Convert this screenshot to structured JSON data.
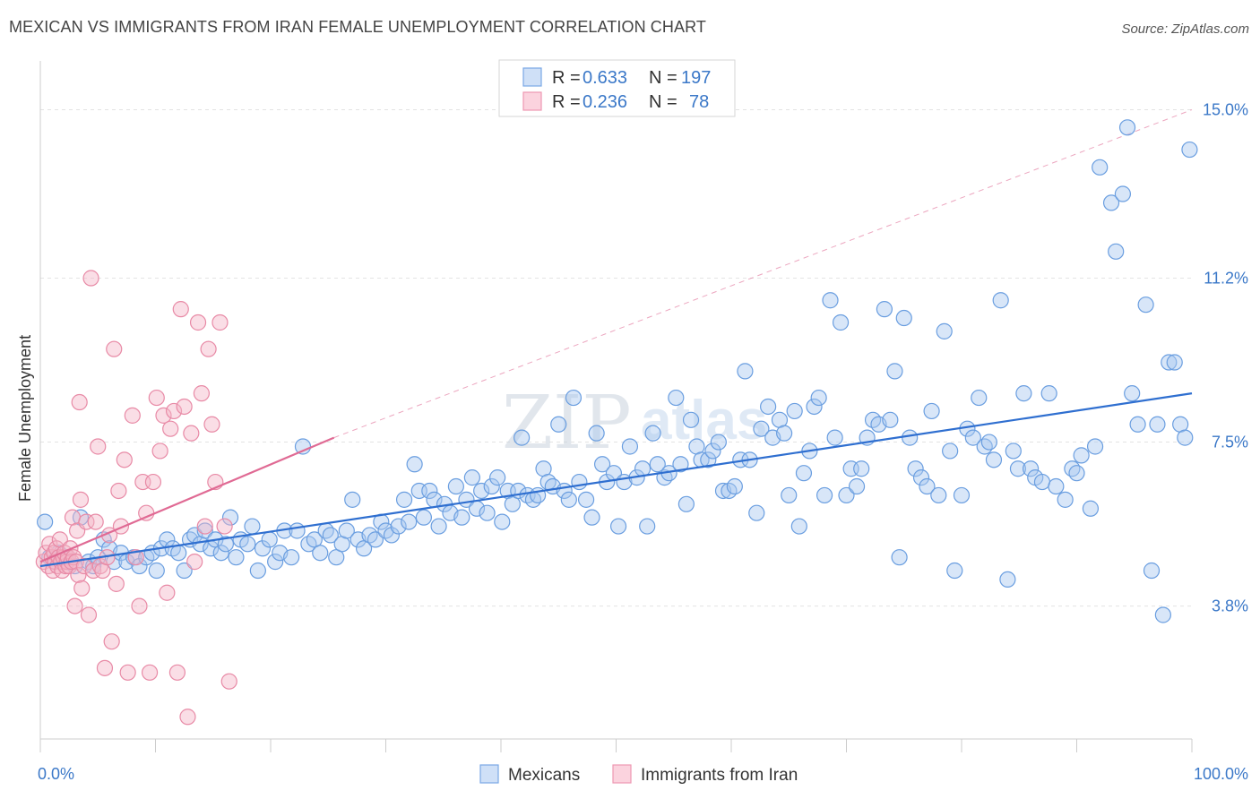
{
  "header": {
    "title": "MEXICAN VS IMMIGRANTS FROM IRAN FEMALE UNEMPLOYMENT CORRELATION CHART",
    "source": "Source: ZipAtlas.com"
  },
  "watermark": {
    "part1": "ZIP",
    "part2": "atlas"
  },
  "legend": {
    "rows": [
      {
        "r_label": "R = ",
        "r_value": "0.633",
        "n_label": "N = ",
        "n_value": "197",
        "color": "#a9c8f0"
      },
      {
        "r_label": "R = ",
        "r_value": "0.236",
        "n_label": "N = ",
        "n_value": "78",
        "color": "#f5b6c8"
      }
    ]
  },
  "bottom_legend": [
    "Mexicans",
    "Immigrants from Iran"
  ],
  "colors": {
    "blue_fill": "#a9c8f0",
    "blue_stroke": "#6a9ee0",
    "blue_line": "#2f6fd0",
    "pink_fill": "#f5b6c8",
    "pink_stroke": "#e88aa6",
    "pink_line": "#e06a94",
    "grid": "#e3e3e3",
    "tick_label": "#3b78c8"
  },
  "chart_data": {
    "type": "scatter",
    "title": "MEXICAN VS IMMIGRANTS FROM IRAN FEMALE UNEMPLOYMENT CORRELATION CHART",
    "xlabel": "",
    "ylabel": "Female Unemployment",
    "xlim": [
      0,
      100
    ],
    "ylim": [
      0.8,
      15.9
    ],
    "x_tick_labels": [
      "0.0%",
      "100.0%"
    ],
    "y_ticks": [
      3.8,
      7.5,
      11.2,
      15.0
    ],
    "y_tick_labels": [
      "3.8%",
      "7.5%",
      "11.2%",
      "15.0%"
    ],
    "grid": true,
    "series": [
      {
        "name": "Mexicans",
        "r": 0.633,
        "n": 197,
        "trend": {
          "x": [
            0,
            100
          ],
          "y": [
            4.7,
            8.6
          ]
        },
        "points": [
          [
            0.4,
            5.7
          ],
          [
            0.8,
            4.9
          ],
          [
            1.2,
            4.8
          ],
          [
            1.6,
            5.0
          ],
          [
            2.0,
            4.8
          ],
          [
            2.4,
            4.9
          ],
          [
            3.0,
            4.7
          ],
          [
            3.5,
            5.8
          ],
          [
            4.2,
            4.8
          ],
          [
            4.6,
            4.7
          ],
          [
            5.0,
            4.9
          ],
          [
            5.5,
            5.3
          ],
          [
            6.0,
            5.1
          ],
          [
            6.4,
            4.8
          ],
          [
            7.0,
            5.0
          ],
          [
            7.5,
            4.8
          ],
          [
            8.1,
            4.9
          ],
          [
            8.6,
            4.7
          ],
          [
            9.2,
            4.9
          ],
          [
            9.7,
            5.0
          ],
          [
            10.1,
            4.6
          ],
          [
            10.5,
            5.1
          ],
          [
            11.0,
            5.3
          ],
          [
            11.5,
            5.1
          ],
          [
            12.0,
            5.0
          ],
          [
            12.5,
            4.6
          ],
          [
            13.0,
            5.3
          ],
          [
            13.4,
            5.4
          ],
          [
            13.9,
            5.2
          ],
          [
            14.3,
            5.5
          ],
          [
            14.8,
            5.1
          ],
          [
            15.2,
            5.3
          ],
          [
            15.7,
            5.0
          ],
          [
            16.1,
            5.2
          ],
          [
            16.5,
            5.8
          ],
          [
            17.0,
            4.9
          ],
          [
            17.4,
            5.3
          ],
          [
            18.0,
            5.2
          ],
          [
            18.4,
            5.6
          ],
          [
            18.9,
            4.6
          ],
          [
            19.3,
            5.1
          ],
          [
            19.9,
            5.3
          ],
          [
            20.4,
            4.8
          ],
          [
            20.8,
            5.0
          ],
          [
            21.2,
            5.5
          ],
          [
            21.8,
            4.9
          ],
          [
            22.3,
            5.5
          ],
          [
            22.8,
            7.4
          ],
          [
            23.3,
            5.2
          ],
          [
            23.8,
            5.3
          ],
          [
            24.3,
            5.0
          ],
          [
            24.8,
            5.5
          ],
          [
            25.2,
            5.4
          ],
          [
            25.7,
            4.9
          ],
          [
            26.2,
            5.2
          ],
          [
            26.6,
            5.5
          ],
          [
            27.1,
            6.2
          ],
          [
            27.6,
            5.3
          ],
          [
            28.1,
            5.1
          ],
          [
            28.6,
            5.4
          ],
          [
            29.1,
            5.3
          ],
          [
            29.6,
            5.7
          ],
          [
            30.0,
            5.5
          ],
          [
            30.5,
            5.4
          ],
          [
            31.1,
            5.6
          ],
          [
            31.6,
            6.2
          ],
          [
            32.0,
            5.7
          ],
          [
            32.5,
            7.0
          ],
          [
            32.9,
            6.4
          ],
          [
            33.3,
            5.8
          ],
          [
            33.8,
            6.4
          ],
          [
            34.2,
            6.2
          ],
          [
            34.6,
            5.6
          ],
          [
            35.1,
            6.1
          ],
          [
            35.6,
            5.9
          ],
          [
            36.1,
            6.5
          ],
          [
            36.6,
            5.8
          ],
          [
            37.0,
            6.2
          ],
          [
            37.5,
            6.7
          ],
          [
            37.9,
            6.0
          ],
          [
            38.3,
            6.4
          ],
          [
            38.8,
            5.9
          ],
          [
            39.2,
            6.5
          ],
          [
            39.7,
            6.7
          ],
          [
            40.1,
            5.7
          ],
          [
            40.6,
            6.4
          ],
          [
            41.0,
            6.1
          ],
          [
            41.5,
            6.4
          ],
          [
            41.8,
            7.6
          ],
          [
            42.3,
            6.3
          ],
          [
            42.8,
            6.2
          ],
          [
            43.2,
            6.3
          ],
          [
            43.7,
            6.9
          ],
          [
            44.1,
            6.6
          ],
          [
            44.5,
            6.5
          ],
          [
            45.0,
            7.9
          ],
          [
            45.5,
            6.4
          ],
          [
            45.9,
            6.2
          ],
          [
            46.3,
            8.5
          ],
          [
            46.8,
            6.6
          ],
          [
            47.4,
            6.2
          ],
          [
            47.9,
            5.8
          ],
          [
            48.3,
            7.7
          ],
          [
            48.8,
            7.0
          ],
          [
            49.2,
            6.6
          ],
          [
            49.8,
            6.8
          ],
          [
            50.2,
            5.6
          ],
          [
            50.7,
            6.6
          ],
          [
            51.2,
            7.4
          ],
          [
            51.8,
            6.7
          ],
          [
            52.3,
            6.9
          ],
          [
            52.7,
            5.6
          ],
          [
            53.2,
            7.7
          ],
          [
            53.6,
            7.0
          ],
          [
            54.2,
            6.7
          ],
          [
            54.6,
            6.8
          ],
          [
            55.2,
            8.5
          ],
          [
            55.6,
            7.0
          ],
          [
            56.1,
            6.1
          ],
          [
            56.5,
            8.0
          ],
          [
            57.0,
            7.4
          ],
          [
            57.4,
            7.1
          ],
          [
            58.0,
            7.1
          ],
          [
            58.4,
            7.3
          ],
          [
            58.9,
            7.5
          ],
          [
            59.3,
            6.4
          ],
          [
            59.8,
            6.4
          ],
          [
            60.3,
            6.5
          ],
          [
            60.8,
            7.1
          ],
          [
            61.2,
            9.1
          ],
          [
            61.6,
            7.1
          ],
          [
            62.2,
            5.9
          ],
          [
            62.6,
            7.8
          ],
          [
            63.2,
            8.3
          ],
          [
            63.6,
            7.6
          ],
          [
            64.2,
            8.0
          ],
          [
            64.6,
            7.7
          ],
          [
            65.0,
            6.3
          ],
          [
            65.5,
            8.2
          ],
          [
            65.9,
            5.6
          ],
          [
            66.3,
            6.8
          ],
          [
            66.8,
            7.3
          ],
          [
            67.2,
            8.3
          ],
          [
            67.6,
            8.5
          ],
          [
            68.1,
            6.3
          ],
          [
            68.6,
            10.7
          ],
          [
            69.0,
            7.6
          ],
          [
            69.5,
            10.2
          ],
          [
            70.0,
            6.3
          ],
          [
            70.4,
            6.9
          ],
          [
            70.9,
            6.5
          ],
          [
            71.3,
            6.9
          ],
          [
            71.8,
            7.6
          ],
          [
            72.3,
            8.0
          ],
          [
            72.8,
            7.9
          ],
          [
            73.3,
            10.5
          ],
          [
            73.8,
            8.0
          ],
          [
            74.2,
            9.1
          ],
          [
            74.6,
            4.9
          ],
          [
            75.0,
            10.3
          ],
          [
            75.5,
            7.6
          ],
          [
            76.0,
            6.9
          ],
          [
            76.5,
            6.7
          ],
          [
            77.0,
            6.5
          ],
          [
            77.4,
            8.2
          ],
          [
            78.0,
            6.3
          ],
          [
            78.5,
            10.0
          ],
          [
            79.0,
            7.3
          ],
          [
            79.4,
            4.6
          ],
          [
            80.0,
            6.3
          ],
          [
            80.5,
            7.8
          ],
          [
            81.0,
            7.6
          ],
          [
            81.5,
            8.5
          ],
          [
            82.0,
            7.4
          ],
          [
            82.4,
            7.5
          ],
          [
            82.8,
            7.1
          ],
          [
            83.4,
            10.7
          ],
          [
            84.0,
            4.4
          ],
          [
            84.5,
            7.3
          ],
          [
            84.9,
            6.9
          ],
          [
            85.4,
            8.6
          ],
          [
            86.0,
            6.9
          ],
          [
            86.4,
            6.7
          ],
          [
            87.0,
            6.6
          ],
          [
            87.6,
            8.6
          ],
          [
            88.2,
            6.5
          ],
          [
            89.0,
            6.2
          ],
          [
            89.6,
            6.9
          ],
          [
            90.0,
            6.8
          ],
          [
            90.4,
            7.2
          ],
          [
            91.2,
            6.0
          ],
          [
            91.6,
            7.4
          ],
          [
            92.0,
            13.7
          ],
          [
            93.0,
            12.9
          ],
          [
            93.4,
            11.8
          ],
          [
            94.0,
            13.1
          ],
          [
            94.4,
            14.6
          ],
          [
            94.8,
            8.6
          ],
          [
            95.3,
            7.9
          ],
          [
            96.0,
            10.6
          ],
          [
            96.5,
            4.6
          ],
          [
            97.0,
            7.9
          ],
          [
            97.5,
            3.6
          ],
          [
            98.0,
            9.3
          ],
          [
            98.5,
            9.3
          ],
          [
            99.0,
            7.9
          ],
          [
            99.4,
            7.6
          ],
          [
            99.8,
            14.1
          ]
        ]
      },
      {
        "name": "Immigrants from Iran",
        "r": 0.236,
        "n": 78,
        "trend": {
          "x": [
            0,
            25.5
          ],
          "y": [
            4.8,
            7.6
          ]
        },
        "trend_extension": {
          "x": [
            25.5,
            100
          ],
          "y": [
            7.6,
            15.0
          ]
        },
        "points": [
          [
            0.3,
            4.8
          ],
          [
            0.5,
            5.0
          ],
          [
            0.7,
            4.7
          ],
          [
            0.8,
            5.2
          ],
          [
            1.0,
            4.9
          ],
          [
            1.1,
            4.6
          ],
          [
            1.2,
            5.0
          ],
          [
            1.3,
            4.8
          ],
          [
            1.4,
            5.1
          ],
          [
            1.5,
            4.7
          ],
          [
            1.6,
            4.9
          ],
          [
            1.7,
            5.3
          ],
          [
            1.8,
            4.8
          ],
          [
            1.9,
            4.6
          ],
          [
            2.0,
            4.9
          ],
          [
            2.1,
            5.0
          ],
          [
            2.2,
            4.7
          ],
          [
            2.3,
            4.8
          ],
          [
            2.4,
            4.9
          ],
          [
            2.5,
            4.7
          ],
          [
            2.6,
            5.1
          ],
          [
            2.7,
            4.8
          ],
          [
            2.8,
            5.8
          ],
          [
            2.9,
            4.9
          ],
          [
            3.0,
            3.8
          ],
          [
            3.1,
            4.8
          ],
          [
            3.2,
            5.5
          ],
          [
            3.3,
            4.5
          ],
          [
            3.4,
            8.4
          ],
          [
            3.5,
            6.2
          ],
          [
            3.6,
            4.2
          ],
          [
            3.8,
            4.7
          ],
          [
            4.0,
            5.7
          ],
          [
            4.2,
            3.6
          ],
          [
            4.4,
            11.2
          ],
          [
            4.6,
            4.6
          ],
          [
            4.8,
            5.7
          ],
          [
            5.0,
            7.4
          ],
          [
            5.2,
            4.7
          ],
          [
            5.4,
            4.6
          ],
          [
            5.6,
            2.4
          ],
          [
            5.8,
            4.9
          ],
          [
            6.0,
            5.4
          ],
          [
            6.2,
            3.0
          ],
          [
            6.4,
            9.6
          ],
          [
            6.6,
            4.3
          ],
          [
            6.8,
            6.4
          ],
          [
            7.0,
            5.6
          ],
          [
            7.3,
            7.1
          ],
          [
            7.6,
            2.3
          ],
          [
            8.0,
            8.1
          ],
          [
            8.3,
            4.9
          ],
          [
            8.6,
            3.8
          ],
          [
            8.9,
            6.6
          ],
          [
            9.2,
            5.9
          ],
          [
            9.5,
            2.3
          ],
          [
            9.8,
            6.6
          ],
          [
            10.1,
            8.5
          ],
          [
            10.4,
            7.3
          ],
          [
            10.7,
            8.1
          ],
          [
            11.0,
            4.1
          ],
          [
            11.3,
            7.8
          ],
          [
            11.6,
            8.2
          ],
          [
            11.9,
            2.3
          ],
          [
            12.2,
            10.5
          ],
          [
            12.5,
            8.3
          ],
          [
            12.8,
            1.3
          ],
          [
            13.1,
            7.7
          ],
          [
            13.4,
            4.8
          ],
          [
            13.7,
            10.2
          ],
          [
            14.0,
            8.6
          ],
          [
            14.3,
            5.6
          ],
          [
            14.6,
            9.6
          ],
          [
            14.9,
            7.9
          ],
          [
            15.2,
            6.6
          ],
          [
            15.6,
            10.2
          ],
          [
            16.0,
            5.6
          ],
          [
            16.4,
            2.1
          ]
        ]
      }
    ]
  }
}
